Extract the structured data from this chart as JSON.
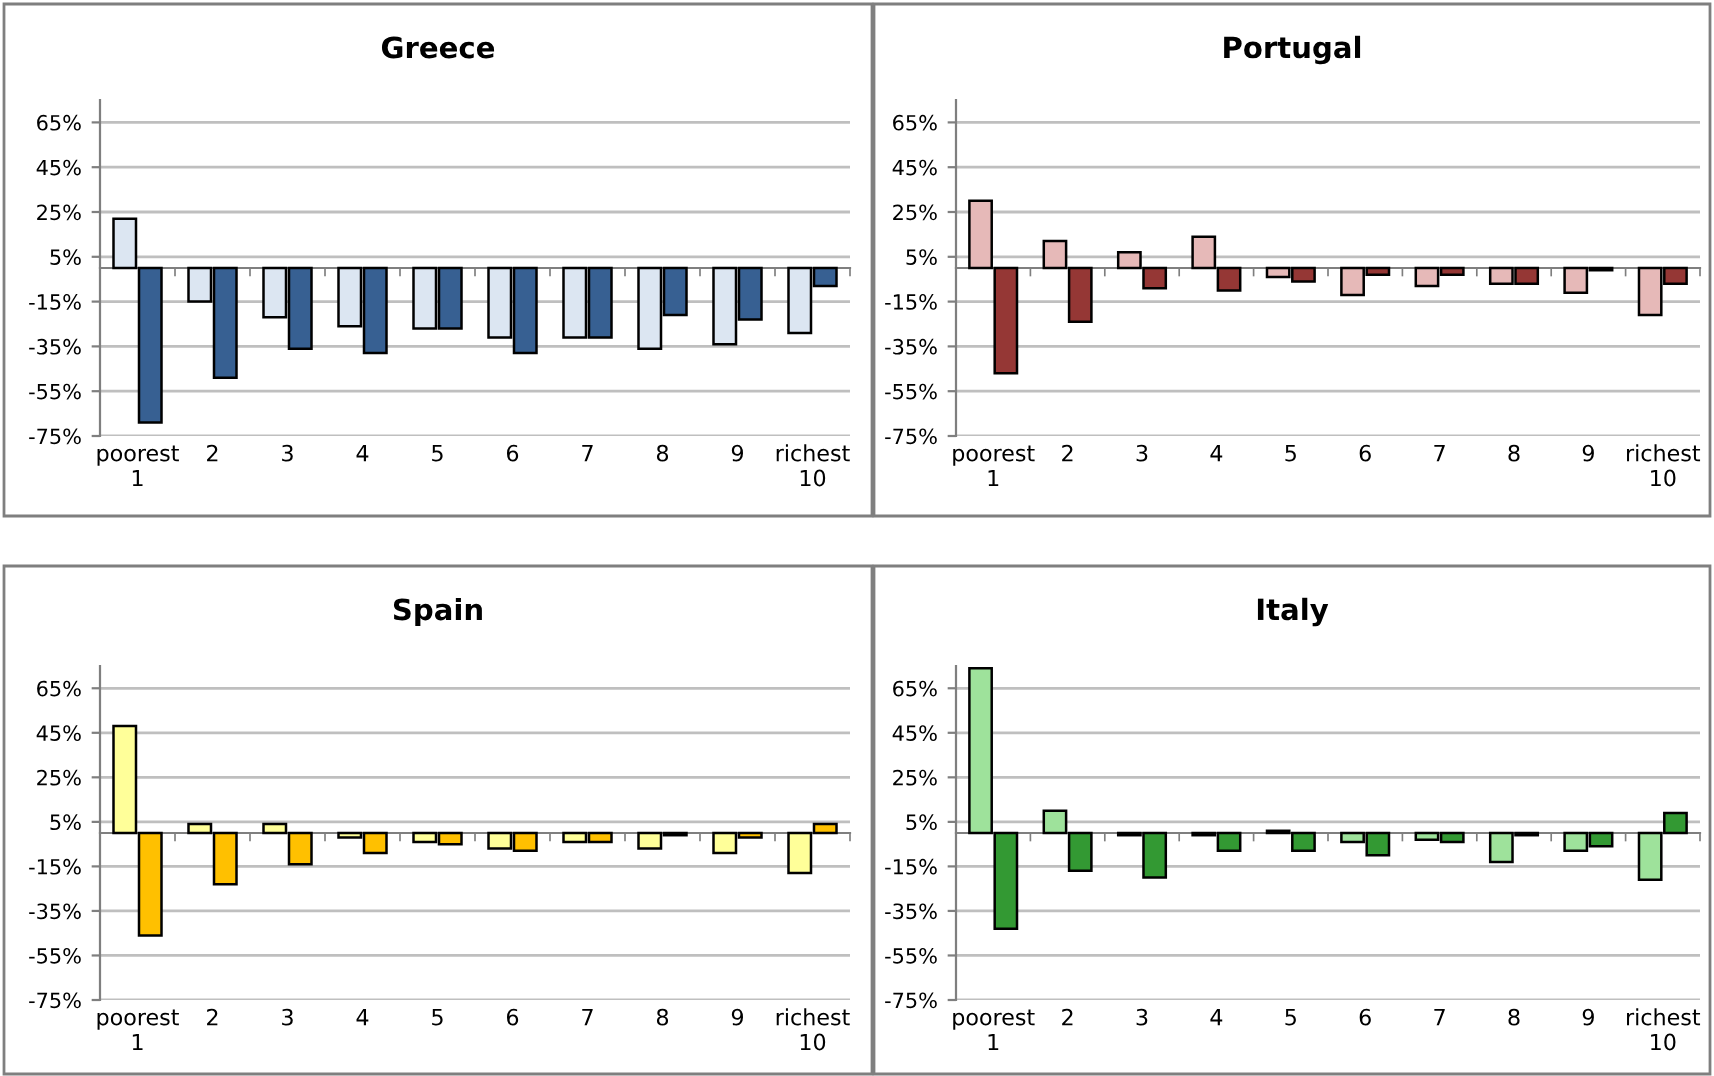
{
  "chart_data": [
    {
      "type": "bar",
      "title": "Greece",
      "categories": [
        "poorest\n1",
        "2",
        "3",
        "4",
        "5",
        "6",
        "7",
        "8",
        "9",
        "richest\n10"
      ],
      "series": [
        {
          "color": "#dce6f2",
          "values": [
            22,
            -15,
            -22,
            -26,
            -27,
            -31,
            -31,
            -36,
            -34,
            -29
          ]
        },
        {
          "color": "#376092",
          "values": [
            -69,
            -49,
            -36,
            -38,
            -27,
            -38,
            -31,
            -21,
            -23,
            -8
          ]
        }
      ],
      "ylim": [
        -75,
        75
      ],
      "yticks": [
        {
          "value": -75,
          "label": "-75%"
        },
        {
          "value": -55,
          "label": "-55%"
        },
        {
          "value": -35,
          "label": "-35%"
        },
        {
          "value": -15,
          "label": "-15%"
        },
        {
          "value": 5,
          "label": "5%"
        },
        {
          "value": 25,
          "label": "25%"
        },
        {
          "value": 45,
          "label": "45%"
        },
        {
          "value": 65,
          "label": "65%"
        }
      ],
      "grid": "y"
    },
    {
      "type": "bar",
      "title": "Portugal",
      "categories": [
        "poorest\n1",
        "2",
        "3",
        "4",
        "5",
        "6",
        "7",
        "8",
        "9",
        "richest\n10"
      ],
      "series": [
        {
          "color": "#e6b9b8",
          "values": [
            30,
            12,
            7,
            14,
            -4,
            -12,
            -8,
            -7,
            -11,
            -21
          ]
        },
        {
          "color": "#953735",
          "values": [
            -47,
            -24,
            -9,
            -10,
            -6,
            -3,
            -3,
            -7,
            -1,
            -7
          ]
        }
      ],
      "ylim": [
        -75,
        75
      ],
      "yticks": [
        {
          "value": -75,
          "label": "-75%"
        },
        {
          "value": -55,
          "label": "-55%"
        },
        {
          "value": -35,
          "label": "-35%"
        },
        {
          "value": -15,
          "label": "-15%"
        },
        {
          "value": 5,
          "label": "5%"
        },
        {
          "value": 25,
          "label": "25%"
        },
        {
          "value": 45,
          "label": "45%"
        },
        {
          "value": 65,
          "label": "65%"
        }
      ],
      "grid": "y"
    },
    {
      "type": "bar",
      "title": "Spain",
      "categories": [
        "poorest\n1",
        "2",
        "3",
        "4",
        "5",
        "6",
        "7",
        "8",
        "9",
        "richest\n10"
      ],
      "series": [
        {
          "color": "#ffff99",
          "values": [
            48,
            4,
            4,
            -2,
            -4,
            -7,
            -4,
            -7,
            -9,
            -18
          ]
        },
        {
          "color": "#ffc000",
          "values": [
            -46,
            -23,
            -14,
            -9,
            -5,
            -8,
            -4,
            -1,
            -2,
            4
          ]
        }
      ],
      "ylim": [
        -75,
        75
      ],
      "yticks": [
        {
          "value": -75,
          "label": "-75%"
        },
        {
          "value": -55,
          "label": "-55%"
        },
        {
          "value": -35,
          "label": "-35%"
        },
        {
          "value": -15,
          "label": "-15%"
        },
        {
          "value": 5,
          "label": "5%"
        },
        {
          "value": 25,
          "label": "25%"
        },
        {
          "value": 45,
          "label": "45%"
        },
        {
          "value": 65,
          "label": "65%"
        }
      ],
      "grid": "y"
    },
    {
      "type": "bar",
      "title": "Italy",
      "categories": [
        "poorest\n1",
        "2",
        "3",
        "4",
        "5",
        "6",
        "7",
        "8",
        "9",
        "richest\n10"
      ],
      "series": [
        {
          "color": "#9ee29b",
          "values": [
            74,
            10,
            -1,
            -1,
            1,
            -4,
            -3,
            -13,
            -8,
            -21
          ]
        },
        {
          "color": "#339933",
          "values": [
            -43,
            -17,
            -20,
            -8,
            -8,
            -10,
            -4,
            -1,
            -6,
            9
          ]
        }
      ],
      "ylim": [
        -75,
        75
      ],
      "yticks": [
        {
          "value": -75,
          "label": "-75%"
        },
        {
          "value": -55,
          "label": "-55%"
        },
        {
          "value": -35,
          "label": "-35%"
        },
        {
          "value": -15,
          "label": "-15%"
        },
        {
          "value": 5,
          "label": "5%"
        },
        {
          "value": 25,
          "label": "25%"
        },
        {
          "value": 45,
          "label": "45%"
        },
        {
          "value": 65,
          "label": "65%"
        }
      ],
      "grid": "y"
    }
  ]
}
